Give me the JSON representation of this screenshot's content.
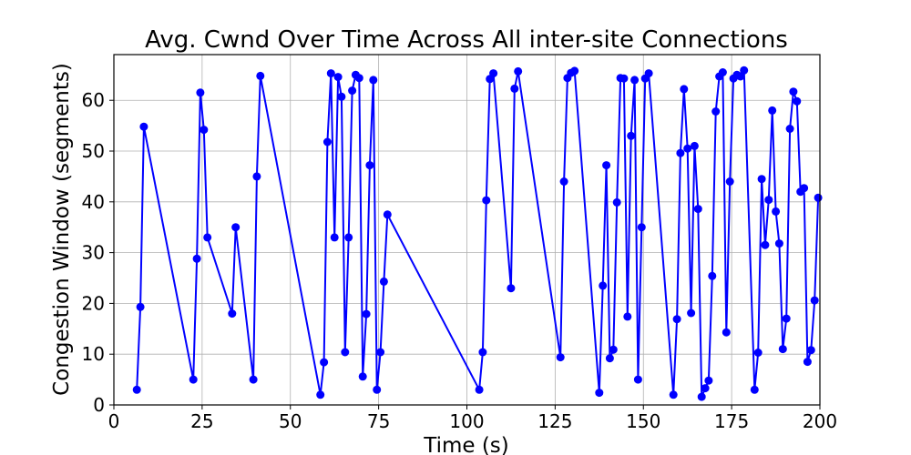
{
  "chart_data": {
    "type": "line",
    "title": "Avg. Cwnd Over Time Across All inter-site Connections",
    "xlabel": "Time (s)",
    "ylabel": "Congestion Window (segments)",
    "xlim": [
      0,
      200
    ],
    "ylim": [
      0,
      69
    ],
    "xticks": [
      0,
      25,
      50,
      75,
      100,
      125,
      150,
      175,
      200
    ],
    "yticks": [
      0,
      10,
      20,
      30,
      40,
      50,
      60
    ],
    "grid": true,
    "series_color": "#0000ff",
    "marker": "circle",
    "points": [
      [
        6.5,
        3
      ],
      [
        7.5,
        19.3
      ],
      [
        8.5,
        54.8
      ],
      [
        22.5,
        5
      ],
      [
        23.5,
        28.8
      ],
      [
        24.5,
        61.5
      ],
      [
        25.5,
        54.2
      ],
      [
        26.5,
        33
      ],
      [
        33.5,
        18
      ],
      [
        34.5,
        35
      ],
      [
        39.5,
        5
      ],
      [
        40.5,
        45
      ],
      [
        41.5,
        64.8
      ],
      [
        58.5,
        2
      ],
      [
        59.5,
        8.4
      ],
      [
        60.5,
        51.8
      ],
      [
        61.5,
        65.3
      ],
      [
        62.5,
        33
      ],
      [
        63.5,
        64.6
      ],
      [
        64.5,
        60.7
      ],
      [
        65.5,
        10.4
      ],
      [
        66.5,
        33
      ],
      [
        67.5,
        61.9
      ],
      [
        68.5,
        65
      ],
      [
        69.5,
        64.4
      ],
      [
        70.5,
        5.6
      ],
      [
        71.5,
        17.9
      ],
      [
        72.5,
        47.2
      ],
      [
        73.5,
        64
      ],
      [
        74.5,
        3
      ],
      [
        75.5,
        10.4
      ],
      [
        76.5,
        24.3
      ],
      [
        77.5,
        37.5
      ],
      [
        103.5,
        3
      ],
      [
        104.5,
        10.4
      ],
      [
        105.5,
        40.3
      ],
      [
        106.5,
        64.2
      ],
      [
        107.5,
        65.3
      ],
      [
        112.5,
        23
      ],
      [
        113.5,
        62.3
      ],
      [
        114.5,
        65.7
      ],
      [
        126.5,
        9.4
      ],
      [
        127.5,
        44
      ],
      [
        128.5,
        64.4
      ],
      [
        129.5,
        65.4
      ],
      [
        130.5,
        65.8
      ],
      [
        137.5,
        2.4
      ],
      [
        138.5,
        23.5
      ],
      [
        139.5,
        47.2
      ],
      [
        140.5,
        9.2
      ],
      [
        141.5,
        10.9
      ],
      [
        142.5,
        39.9
      ],
      [
        143.5,
        64.4
      ],
      [
        144.5,
        64.3
      ],
      [
        145.5,
        17.4
      ],
      [
        146.5,
        53
      ],
      [
        147.5,
        64
      ],
      [
        148.5,
        5
      ],
      [
        149.5,
        35
      ],
      [
        150.5,
        64.3
      ],
      [
        151.5,
        65.3
      ],
      [
        158.5,
        2
      ],
      [
        159.5,
        16.9
      ],
      [
        160.5,
        49.6
      ],
      [
        161.5,
        62.2
      ],
      [
        162.5,
        50.5
      ],
      [
        163.5,
        18.1
      ],
      [
        164.5,
        51
      ],
      [
        165.5,
        38.6
      ],
      [
        166.5,
        1.6
      ],
      [
        167.5,
        3.3
      ],
      [
        168.5,
        4.8
      ],
      [
        169.5,
        25.4
      ],
      [
        170.5,
        57.8
      ],
      [
        171.5,
        64.7
      ],
      [
        172.5,
        65.5
      ],
      [
        173.5,
        14.3
      ],
      [
        174.5,
        44
      ],
      [
        175.5,
        64.3
      ],
      [
        176.5,
        65
      ],
      [
        177.5,
        64.7
      ],
      [
        178.5,
        65.9
      ],
      [
        181.5,
        3
      ],
      [
        182.5,
        10.3
      ],
      [
        183.5,
        44.5
      ],
      [
        184.5,
        31.5
      ],
      [
        185.5,
        40.4
      ],
      [
        186.5,
        58
      ],
      [
        187.5,
        38.1
      ],
      [
        188.5,
        31.8
      ],
      [
        189.5,
        11
      ],
      [
        190.5,
        17
      ],
      [
        191.5,
        54.4
      ],
      [
        192.5,
        61.7
      ],
      [
        193.5,
        59.8
      ],
      [
        194.5,
        42
      ],
      [
        195.5,
        42.7
      ],
      [
        196.5,
        8.5
      ],
      [
        197.5,
        10.8
      ],
      [
        198.5,
        20.6
      ],
      [
        199.5,
        40.8
      ]
    ]
  }
}
